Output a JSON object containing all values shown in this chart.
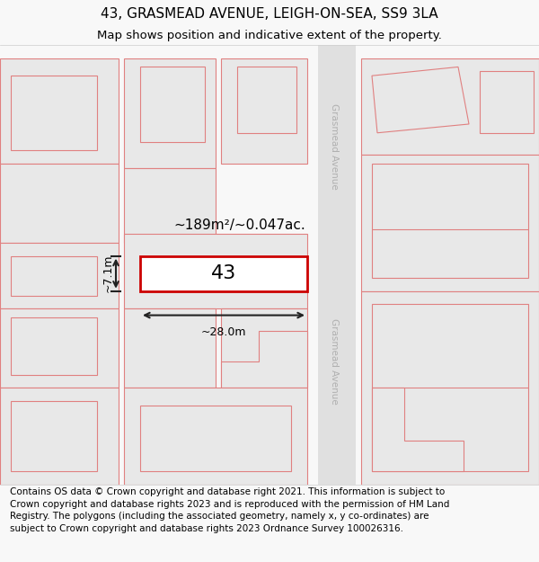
{
  "title": "43, GRASMEAD AVENUE, LEIGH-ON-SEA, SS9 3LA",
  "subtitle": "Map shows position and indicative extent of the property.",
  "footer": "Contains OS data © Crown copyright and database right 2021. This information is subject to Crown copyright and database rights 2023 and is reproduced with the permission of HM Land Registry. The polygons (including the associated geometry, namely x, y co-ordinates) are subject to Crown copyright and database rights 2023 Ordnance Survey 100026316.",
  "area_label": "~189m²/~0.047ac.",
  "width_label": "~28.0m",
  "height_label": "~7.1m",
  "property_number": "43",
  "bg_color": "#f8f8f8",
  "map_bg": "#ffffff",
  "plot_fill": "#e8e8e8",
  "plot_edge": "#e08080",
  "highlight_fill": "#ffffff",
  "highlight_edge": "#cc0000",
  "road_fill": "#ffffff",
  "road_edge": "#d0d0d0",
  "road_label_color": "#b0b0b0",
  "dim_color": "#222222",
  "title_fontsize": 11,
  "subtitle_fontsize": 9.5,
  "footer_fontsize": 7.5,
  "figsize": [
    6.0,
    6.25
  ],
  "dpi": 100
}
